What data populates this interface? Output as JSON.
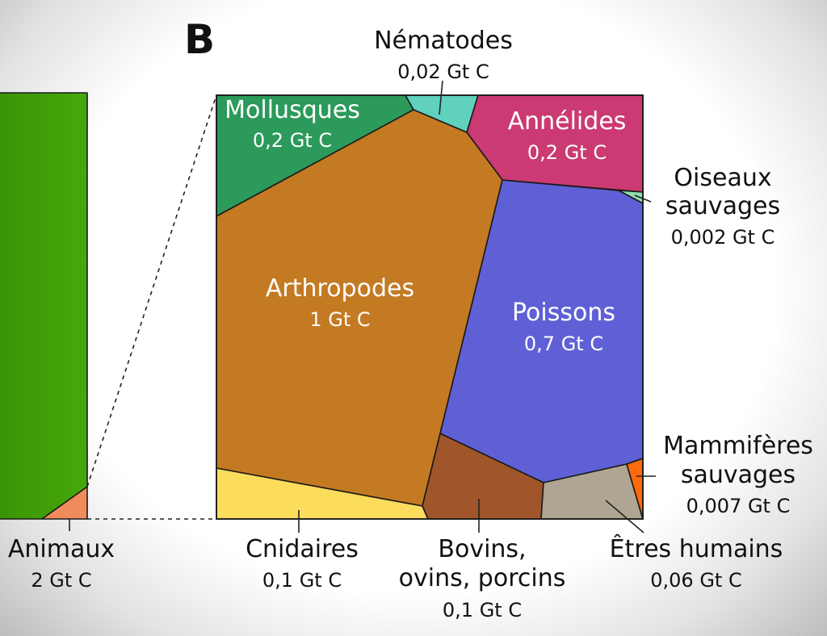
{
  "panel_letter": "B",
  "colors": {
    "animaux_bar": "#3f9c06",
    "animaux_wedge": "#f08c5c",
    "mollusques": "#2b9a5a",
    "nematodes": "#5fd1bd",
    "annelides": "#cb3a72",
    "oiseaux": "#8fe0b0",
    "arthropodes": "#c47a22",
    "poissons": "#6060d6",
    "cnidaires": "#fcdc5c",
    "bovins": "#a0562a",
    "humains": "#aea592",
    "mammiferes": "#ff6a0a"
  },
  "chart_data": {
    "type": "voronoi-treemap",
    "unit": "Gt C",
    "parent": {
      "name": "Animaux",
      "value": 2,
      "value_label": "2 Gt C"
    },
    "cells": [
      {
        "id": "arthropodes",
        "name": "Arthropodes",
        "value": 1,
        "value_label": "1 Gt C"
      },
      {
        "id": "poissons",
        "name": "Poissons",
        "value": 0.7,
        "value_label": "0,7 Gt C"
      },
      {
        "id": "mollusques",
        "name": "Mollusques",
        "value": 0.2,
        "value_label": "0,2 Gt C"
      },
      {
        "id": "annelides",
        "name": "Annélides",
        "value": 0.2,
        "value_label": "0,2 Gt C"
      },
      {
        "id": "cnidaires",
        "name": "Cnidaires",
        "value": 0.1,
        "value_label": "0,1 Gt C"
      },
      {
        "id": "bovins",
        "name": "Bovins, ovins, porcins",
        "name_lines": [
          "Bovins,",
          "ovins, porcins"
        ],
        "value": 0.1,
        "value_label": "0,1 Gt C"
      },
      {
        "id": "humains",
        "name": "Êtres humains",
        "value": 0.06,
        "value_label": "0,06 Gt C"
      },
      {
        "id": "nematodes",
        "name": "Nématodes",
        "value": 0.02,
        "value_label": "0,02 Gt C"
      },
      {
        "id": "mammiferes",
        "name": "Mammifères sauvages",
        "name_lines": [
          "Mammifères",
          "sauvages"
        ],
        "value": 0.007,
        "value_label": "0,007 Gt C"
      },
      {
        "id": "oiseaux",
        "name": "Oiseaux sauvages",
        "name_lines": [
          "Oiseaux",
          "sauvages"
        ],
        "value": 0.002,
        "value_label": "0,002 Gt C"
      }
    ]
  }
}
